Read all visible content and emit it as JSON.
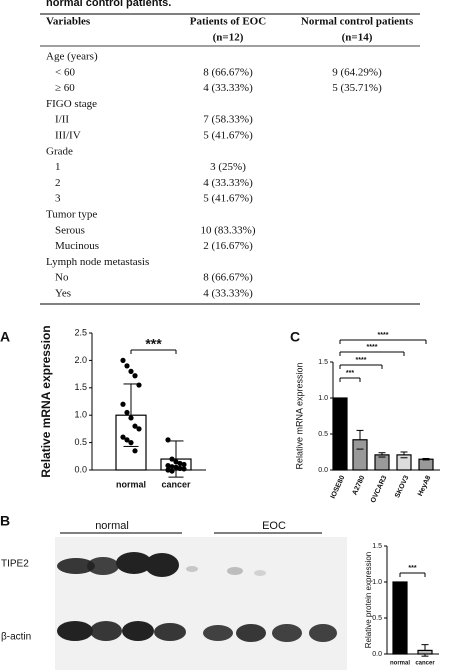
{
  "table": {
    "caption": "normal control patients.",
    "columns": [
      "Variables",
      [
        "Patients of EOC",
        "(n=12)"
      ],
      [
        "Normal control patients",
        "(n=14)"
      ]
    ],
    "rows": [
      [
        "Age (years)",
        null,
        null
      ],
      [
        "< 60",
        "8 (66.67%)",
        "9 (64.29%)"
      ],
      [
        "≥ 60",
        "4 (33.33%)",
        "5 (35.71%)"
      ],
      [
        "FIGO stage",
        null,
        null
      ],
      [
        "I/II",
        "7 (58.33%)",
        null
      ],
      [
        "III/IV",
        "5 (41.67%)",
        null
      ],
      [
        "Grade",
        null,
        null
      ],
      [
        "1",
        "3 (25%)",
        null
      ],
      [
        "2",
        "4 (33.33%)",
        null
      ],
      [
        "3",
        "5 (41.67%)",
        null
      ],
      [
        "Tumor type",
        null,
        null
      ],
      [
        "Serous",
        "10 (83.33%)",
        null
      ],
      [
        "Mucinous",
        "2 (16.67%)",
        null
      ],
      [
        "Lymph node metastasis",
        null,
        null
      ],
      [
        "No",
        "8 (66.67%)",
        null
      ],
      [
        "Yes",
        "4 (33.33%)",
        null
      ]
    ]
  },
  "blot": {
    "panel": "B",
    "group_labels": [
      "normal",
      "EOC"
    ],
    "row_labels": [
      "TIPE2",
      "β-actin"
    ]
  },
  "chart_data": [
    {
      "type": "bar",
      "panel": "A",
      "ylabel": "Relative mRNA expression",
      "categories": [
        "normal",
        "cancer"
      ],
      "values": [
        1.0,
        0.2
      ],
      "errors": [
        0.57,
        0.33
      ],
      "colors": [
        "#ffffff",
        "#ffffff"
      ],
      "points": [
        [
          2.0,
          1.9,
          1.8,
          1.72,
          1.55,
          1.2,
          1.05,
          0.95,
          0.8,
          0.75,
          0.6,
          0.55,
          0.5,
          0.35
        ],
        [
          0.55,
          0.2,
          0.15,
          0.12,
          0.1,
          0.08,
          0.06,
          0.05,
          0.03,
          0.02,
          0.0,
          -0.02
        ]
      ],
      "annotations": [
        "***"
      ],
      "ylim": [
        0,
        2.5
      ],
      "yticks": [
        {
          "value": 0,
          "label": "0.0"
        },
        {
          "value": 0.5,
          "label": "0.5"
        },
        {
          "value": 1,
          "label": "1.0"
        },
        {
          "value": 1.5,
          "label": "1.5"
        },
        {
          "value": 2,
          "label": "2.0"
        },
        {
          "value": 2.5,
          "label": "2.5"
        }
      ]
    },
    {
      "type": "bar",
      "panel": "C",
      "ylabel": "Relative mRNA expression",
      "categories": [
        "IOSE80",
        "A2780",
        "OVCAR3",
        "SKOV3",
        "HeyA8"
      ],
      "values": [
        1.0,
        0.42,
        0.21,
        0.21,
        0.15
      ],
      "errors": [
        0,
        0.13,
        0.03,
        0.04,
        0.01
      ],
      "colors": [
        "#000000",
        "#999999",
        "#9a9a9a",
        "#dddddd",
        "#999999"
      ],
      "annotations": [
        "***",
        "****",
        "****",
        "****"
      ],
      "ylim": [
        0,
        1.5
      ],
      "yticks": [
        {
          "value": 0,
          "label": "0.0"
        },
        {
          "value": 0.5,
          "label": "0.5"
        },
        {
          "value": 1,
          "label": "1.0"
        },
        {
          "value": 1.5,
          "label": "1.5"
        }
      ]
    },
    {
      "type": "bar",
      "ylabel": "Relative protein expression",
      "categories": [
        "normal",
        "cancer"
      ],
      "values": [
        1.0,
        0.05
      ],
      "errors": [
        0,
        0.08
      ],
      "colors": [
        "#000000",
        "#bbbbbb"
      ],
      "annotations": [
        "***"
      ],
      "ylim": [
        0,
        1.5
      ],
      "yticks": [
        {
          "value": 0,
          "label": "0.0"
        },
        {
          "value": 0.5,
          "label": "0.5"
        },
        {
          "value": 1,
          "label": "1.0"
        },
        {
          "value": 1.5,
          "label": "1.5"
        }
      ]
    }
  ]
}
